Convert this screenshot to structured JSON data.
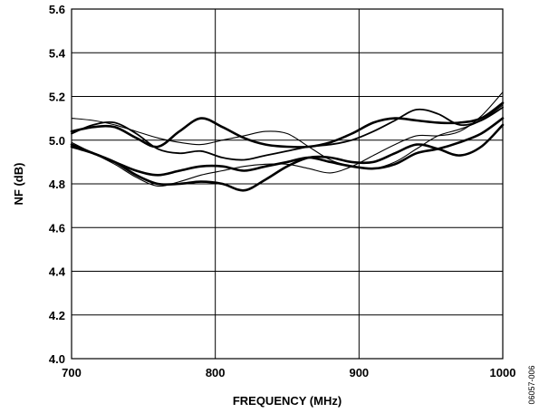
{
  "chart_data": {
    "type": "line",
    "title": "",
    "xlabel": "FREQUENCY (MHz)",
    "ylabel": "NF (dB)",
    "xlim": [
      700,
      1000
    ],
    "ylim": [
      4.0,
      5.6
    ],
    "x_ticks": [
      "700",
      "800",
      "900",
      "1000"
    ],
    "y_ticks": [
      "4.0",
      "4.2",
      "4.4",
      "4.6",
      "4.8",
      "5.0",
      "5.2",
      "5.4",
      "5.6"
    ],
    "grid": true,
    "legend": "none",
    "figure_id": "06057-006",
    "series": [
      {
        "x": [
          700,
          715,
          730,
          745,
          760,
          775,
          790,
          805,
          820,
          835,
          850,
          865,
          880,
          895,
          910,
          925,
          940,
          955,
          970,
          985,
          1000
        ],
        "y": [
          5.04,
          5.06,
          5.06,
          5.01,
          4.97,
          5.04,
          5.1,
          5.06,
          5.01,
          4.98,
          4.97,
          4.97,
          4.99,
          5.03,
          5.08,
          5.1,
          5.09,
          5.08,
          5.08,
          5.1,
          5.17
        ],
        "width": "thick"
      },
      {
        "x": [
          700,
          715,
          730,
          745,
          760,
          775,
          790,
          805,
          820,
          835,
          850,
          865,
          880,
          895,
          910,
          925,
          940,
          955,
          970,
          985,
          1000
        ],
        "y": [
          4.97,
          4.94,
          4.9,
          4.86,
          4.84,
          4.86,
          4.88,
          4.88,
          4.86,
          4.88,
          4.9,
          4.92,
          4.9,
          4.88,
          4.87,
          4.89,
          4.94,
          4.96,
          4.99,
          5.03,
          5.1
        ],
        "width": "thick"
      },
      {
        "x": [
          700,
          715,
          730,
          745,
          760,
          775,
          790,
          805,
          820,
          835,
          850,
          865,
          880,
          895,
          910,
          925,
          940,
          955,
          970,
          985,
          1000
        ],
        "y": [
          4.98,
          4.94,
          4.9,
          4.84,
          4.8,
          4.8,
          4.81,
          4.8,
          4.77,
          4.82,
          4.88,
          4.92,
          4.92,
          4.9,
          4.9,
          4.94,
          4.98,
          4.96,
          4.93,
          4.97,
          5.07
        ],
        "width": "thick"
      },
      {
        "x": [
          700,
          715,
          730,
          745,
          760,
          775,
          790,
          805,
          820,
          835,
          850,
          865,
          880,
          895,
          910,
          925,
          940,
          955,
          970,
          985,
          1000
        ],
        "y": [
          5.03,
          5.07,
          5.08,
          5.03,
          4.96,
          4.94,
          4.95,
          4.92,
          4.91,
          4.93,
          4.95,
          4.97,
          4.98,
          5.0,
          5.04,
          5.09,
          5.14,
          5.12,
          5.07,
          5.09,
          5.15
        ],
        "width": "medium"
      },
      {
        "x": [
          700,
          715,
          730,
          745,
          760,
          775,
          790,
          805,
          820,
          835,
          850,
          865,
          880,
          895,
          910,
          925,
          940,
          955,
          970,
          985,
          1000
        ],
        "y": [
          5.1,
          5.09,
          5.07,
          5.04,
          5.01,
          4.99,
          4.98,
          5.0,
          5.02,
          5.04,
          5.03,
          4.97,
          4.91,
          4.88,
          4.87,
          4.9,
          4.96,
          5.02,
          5.05,
          5.09,
          5.16
        ],
        "width": "thin"
      },
      {
        "x": [
          700,
          715,
          730,
          745,
          760,
          775,
          790,
          805,
          820,
          835,
          850,
          865,
          880,
          895,
          910,
          925,
          940,
          955,
          970,
          985,
          1000
        ],
        "y": [
          4.99,
          4.94,
          4.89,
          4.83,
          4.79,
          4.81,
          4.84,
          4.86,
          4.88,
          4.89,
          4.89,
          4.87,
          4.85,
          4.88,
          4.93,
          4.98,
          5.02,
          5.02,
          5.04,
          5.11,
          5.22
        ],
        "width": "thin"
      }
    ]
  }
}
